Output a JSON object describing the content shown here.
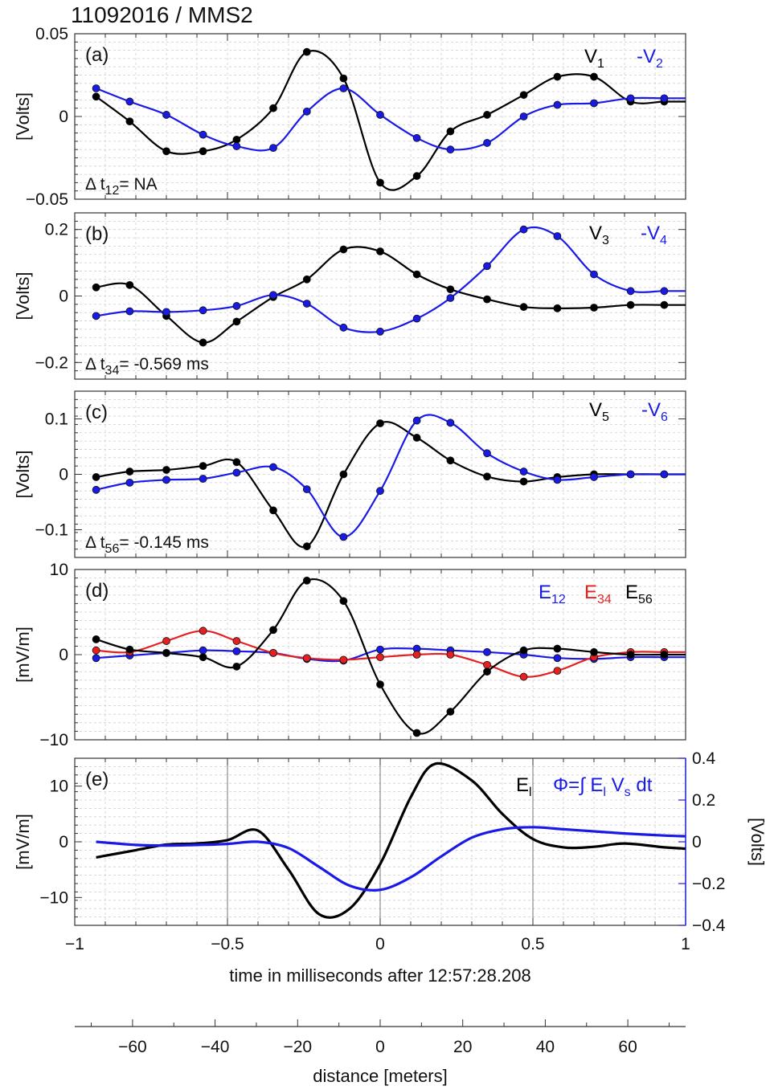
{
  "figure_title": "11092016 / MMS2",
  "colors": {
    "black": "#000000",
    "blue": "#1a1ae6",
    "red": "#e62020"
  },
  "chart_data": [
    {
      "id": "a",
      "type": "line",
      "panel_label": "(a)",
      "ylabel": "[Volts]",
      "ylim": [
        -0.05,
        0.05
      ],
      "yticks": [
        -0.05,
        0,
        0.05
      ],
      "ytick_labels": [
        "−0.05",
        "0",
        "0.05"
      ],
      "xlim": [
        -1,
        1
      ],
      "annotation": {
        "prefix": "Δ t",
        "sub": "12",
        "suffix": "= NA"
      },
      "series": [
        {
          "name": "V1",
          "label": "V",
          "label_sub": "1",
          "color": "#000000",
          "x": [
            -0.93,
            -0.82,
            -0.7,
            -0.58,
            -0.47,
            -0.35,
            -0.24,
            -0.12,
            0.0,
            0.12,
            0.23,
            0.35,
            0.47,
            0.58,
            0.7,
            0.82,
            0.93
          ],
          "y": [
            0.012,
            -0.003,
            -0.021,
            -0.021,
            -0.014,
            0.005,
            0.039,
            0.023,
            -0.04,
            -0.036,
            -0.009,
            0.001,
            0.013,
            0.024,
            0.024,
            0.009,
            0.009
          ]
        },
        {
          "name": "-V2",
          "label": "-V",
          "label_sub": "2",
          "color": "#1a1ae6",
          "x": [
            -0.93,
            -0.82,
            -0.7,
            -0.58,
            -0.47,
            -0.35,
            -0.24,
            -0.12,
            0.0,
            0.12,
            0.23,
            0.35,
            0.47,
            0.58,
            0.7,
            0.82,
            0.93
          ],
          "y": [
            0.017,
            0.009,
            0.001,
            -0.011,
            -0.018,
            -0.019,
            0.003,
            0.017,
            0.001,
            -0.013,
            -0.02,
            -0.016,
            0.0,
            0.007,
            0.008,
            0.011,
            0.011
          ]
        }
      ]
    },
    {
      "id": "b",
      "type": "line",
      "panel_label": "(b)",
      "ylabel": "[Volts]",
      "ylim": [
        -0.25,
        0.25
      ],
      "yticks": [
        -0.2,
        0,
        0.2
      ],
      "ytick_labels": [
        "−0.2",
        "0",
        "0.2"
      ],
      "xlim": [
        -1,
        1
      ],
      "annotation": {
        "prefix": "Δ t",
        "sub": "34",
        "suffix": "= -0.569 ms"
      },
      "series": [
        {
          "name": "V3",
          "label": "V",
          "label_sub": "3",
          "color": "#000000",
          "x": [
            -0.93,
            -0.82,
            -0.7,
            -0.58,
            -0.47,
            -0.35,
            -0.24,
            -0.12,
            0.0,
            0.12,
            0.23,
            0.35,
            0.47,
            0.58,
            0.7,
            0.82,
            0.93
          ],
          "y": [
            0.026,
            0.033,
            -0.06,
            -0.14,
            -0.077,
            -0.003,
            0.05,
            0.14,
            0.134,
            0.065,
            0.02,
            -0.01,
            -0.033,
            -0.037,
            -0.035,
            -0.027,
            -0.027
          ]
        },
        {
          "name": "-V4",
          "label": "-V",
          "label_sub": "4",
          "color": "#1a1ae6",
          "x": [
            -0.93,
            -0.82,
            -0.7,
            -0.58,
            -0.47,
            -0.35,
            -0.24,
            -0.12,
            0.0,
            0.12,
            0.23,
            0.35,
            0.47,
            0.58,
            0.7,
            0.82,
            0.93
          ],
          "y": [
            -0.06,
            -0.046,
            -0.048,
            -0.043,
            -0.03,
            0.003,
            -0.023,
            -0.095,
            -0.107,
            -0.068,
            -0.006,
            0.09,
            0.2,
            0.18,
            0.065,
            0.015,
            0.015
          ]
        }
      ]
    },
    {
      "id": "c",
      "type": "line",
      "panel_label": "(c)",
      "ylabel": "[Volts]",
      "ylim": [
        -0.15,
        0.15
      ],
      "yticks": [
        -0.1,
        0,
        0.1
      ],
      "ytick_labels": [
        "−0.1",
        "0",
        "0.1"
      ],
      "xlim": [
        -1,
        1
      ],
      "annotation": {
        "prefix": "Δ t",
        "sub": "56",
        "suffix": "= -0.145 ms"
      },
      "series": [
        {
          "name": "V5",
          "label": "V",
          "label_sub": "5",
          "color": "#000000",
          "x": [
            -0.93,
            -0.82,
            -0.7,
            -0.58,
            -0.47,
            -0.35,
            -0.24,
            -0.12,
            0.0,
            0.12,
            0.23,
            0.35,
            0.47,
            0.58,
            0.7,
            0.82,
            0.93
          ],
          "y": [
            -0.005,
            0.005,
            0.008,
            0.015,
            0.022,
            -0.065,
            -0.13,
            0.0,
            0.092,
            0.066,
            0.025,
            -0.004,
            -0.013,
            -0.005,
            0.0,
            0.0,
            0.0
          ]
        },
        {
          "name": "-V6",
          "label": "-V",
          "label_sub": "6",
          "color": "#1a1ae6",
          "x": [
            -0.93,
            -0.82,
            -0.7,
            -0.58,
            -0.47,
            -0.35,
            -0.24,
            -0.12,
            0.0,
            0.12,
            0.23,
            0.35,
            0.47,
            0.58,
            0.7,
            0.82,
            0.93
          ],
          "y": [
            -0.028,
            -0.015,
            -0.01,
            -0.008,
            0.003,
            0.013,
            -0.027,
            -0.113,
            -0.03,
            0.097,
            0.093,
            0.038,
            0.005,
            -0.01,
            -0.005,
            0.0,
            0.0
          ]
        }
      ]
    },
    {
      "id": "d",
      "type": "line",
      "panel_label": "(d)",
      "ylabel": "[mV/m]",
      "ylim": [
        -10,
        10
      ],
      "yticks": [
        -10,
        0,
        10
      ],
      "ytick_labels": [
        "−10",
        "0",
        "10"
      ],
      "xlim": [
        -1,
        1
      ],
      "series": [
        {
          "name": "E12",
          "label": "E",
          "label_sub": "12",
          "color": "#1a1ae6",
          "x": [
            -0.93,
            -0.82,
            -0.7,
            -0.58,
            -0.47,
            -0.35,
            -0.24,
            -0.12,
            0.0,
            0.12,
            0.23,
            0.35,
            0.47,
            0.58,
            0.7,
            0.82,
            0.93
          ],
          "y": [
            -0.4,
            -0.1,
            0.2,
            0.5,
            0.4,
            0.2,
            -0.5,
            -0.7,
            0.6,
            0.7,
            0.5,
            0.3,
            0.0,
            -0.4,
            -0.5,
            -0.3,
            -0.3
          ]
        },
        {
          "name": "E34",
          "label": "E",
          "label_sub": "34",
          "color": "#e62020",
          "x": [
            -0.93,
            -0.82,
            -0.7,
            -0.58,
            -0.47,
            -0.35,
            -0.24,
            -0.12,
            0.0,
            0.12,
            0.23,
            0.35,
            0.47,
            0.58,
            0.7,
            0.82,
            0.93
          ],
          "y": [
            0.5,
            0.3,
            1.6,
            2.8,
            1.6,
            0.2,
            -0.4,
            -0.6,
            -0.3,
            0.0,
            0.0,
            -1.2,
            -2.6,
            -1.9,
            -0.3,
            0.3,
            0.3
          ]
        },
        {
          "name": "E56",
          "label": "E",
          "label_sub": "56",
          "color": "#000000",
          "x": [
            -0.93,
            -0.82,
            -0.7,
            -0.58,
            -0.47,
            -0.35,
            -0.24,
            -0.12,
            0.0,
            0.12,
            0.23,
            0.35,
            0.47,
            0.58,
            0.7,
            0.82,
            0.93
          ],
          "y": [
            1.8,
            0.6,
            0.2,
            -0.3,
            -1.4,
            2.9,
            8.7,
            6.3,
            -3.5,
            -9.2,
            -6.7,
            -2.0,
            0.5,
            0.7,
            0.3,
            0.0,
            0.0
          ]
        }
      ]
    },
    {
      "id": "e",
      "type": "line",
      "panel_label": "(e)",
      "ylabel": "[mV/m]",
      "ylim": [
        -15,
        15
      ],
      "yticks": [
        -10,
        0,
        10
      ],
      "ytick_labels": [
        "−10",
        "0",
        "10"
      ],
      "y2label": "[Volts]",
      "y2lim": [
        -0.4,
        0.4
      ],
      "y2ticks": [
        -0.4,
        -0.2,
        0,
        0.2,
        0.4
      ],
      "y2tick_labels": [
        "−0.4",
        "−0.2",
        "0",
        "0.2",
        "0.4"
      ],
      "xlim": [
        -1,
        1
      ],
      "xticks": [
        -1,
        -0.5,
        0,
        0.5,
        1
      ],
      "xtick_labels": [
        "−1",
        "−0.5",
        "0",
        "0.5",
        "1"
      ],
      "xlabel": "time in milliseconds after 12:57:28.208",
      "series": [
        {
          "name": "El",
          "label": "E",
          "label_sub": "l",
          "color": "#000000",
          "axis": "left",
          "x": [
            -0.93,
            -0.8,
            -0.7,
            -0.6,
            -0.5,
            -0.4,
            -0.3,
            -0.2,
            -0.1,
            0.0,
            0.1,
            0.18,
            0.3,
            0.4,
            0.5,
            0.6,
            0.7,
            0.8,
            0.93
          ],
          "y": [
            -2.8,
            -1.5,
            -0.5,
            -0.3,
            0.3,
            2.0,
            -5.0,
            -13.0,
            -12.0,
            -4.0,
            8.0,
            14.0,
            11.0,
            5.0,
            0.5,
            -1.0,
            -0.9,
            -0.3,
            -1.0
          ]
        },
        {
          "name": "Phi",
          "label": "Φ=∫ E",
          "label_sub": "l",
          "label_suffix": " V",
          "label_sub2": "s",
          "label_tail": " dt",
          "color": "#1a1ae6",
          "axis": "right",
          "x": [
            -0.93,
            -0.8,
            -0.7,
            -0.6,
            -0.5,
            -0.4,
            -0.3,
            -0.2,
            -0.1,
            0.0,
            0.1,
            0.2,
            0.3,
            0.4,
            0.5,
            0.6,
            0.7,
            0.8,
            0.93
          ],
          "y": [
            0.0,
            -0.015,
            -0.018,
            -0.015,
            -0.01,
            0.0,
            -0.03,
            -0.12,
            -0.21,
            -0.23,
            -0.17,
            -0.07,
            0.02,
            0.06,
            0.07,
            0.06,
            0.05,
            0.04,
            0.03
          ]
        }
      ]
    }
  ],
  "distance_axis": {
    "label": "distance [meters]",
    "ticks": [
      -60,
      -40,
      -20,
      0,
      20,
      40,
      60
    ],
    "tick_labels": [
      "−60",
      "−40",
      "−20",
      "0",
      "20",
      "40",
      "60"
    ],
    "range": [
      -74,
      74
    ]
  }
}
